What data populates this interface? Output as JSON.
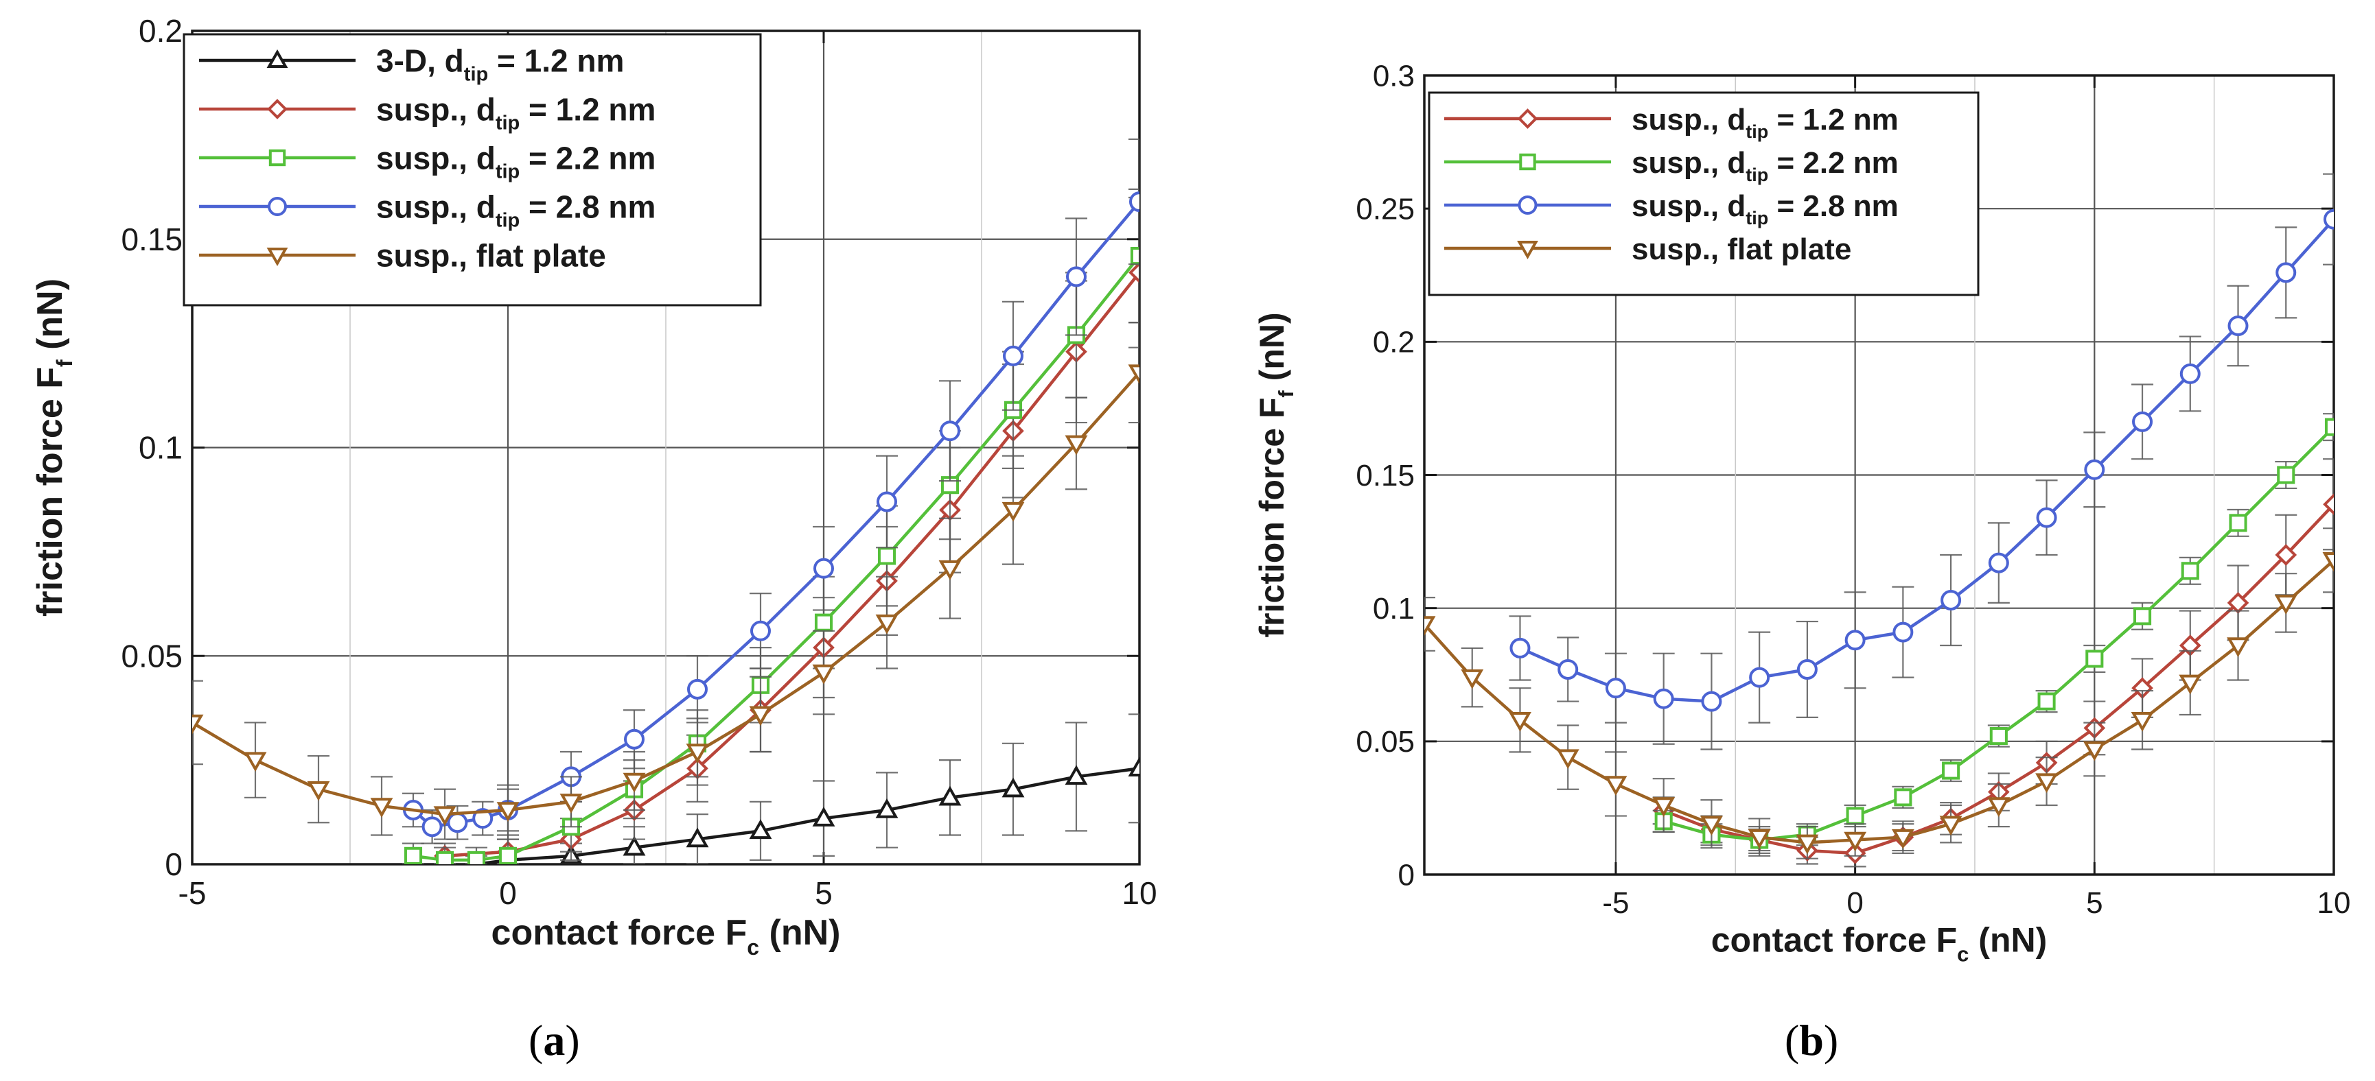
{
  "figure": {
    "panel_a_label_prefix": "(",
    "panel_a_label_letter": "a",
    "panel_a_label_suffix": ")",
    "panel_b_label_prefix": "(",
    "panel_b_label_letter": "b",
    "panel_b_label_suffix": ")"
  },
  "colors": {
    "black": "#1a1a1a",
    "red": "#b8453a",
    "green": "#54c03a",
    "blue": "#4b63d3",
    "brown": "#9c6223",
    "grid_dark": "#555555",
    "grid_light": "#c9c9c9",
    "err_faint": "#c8b994"
  },
  "chart_data": [
    {
      "type": "line",
      "panel": "a",
      "xlabel_main": "contact force F",
      "xlabel_sub": "c",
      "xlabel_unit": " (nN)",
      "ylabel_main": "friction force F",
      "ylabel_sub": "f",
      "ylabel_unit": " (nN)",
      "xlim": [
        -5,
        10
      ],
      "ylim": [
        0,
        0.2
      ],
      "xticks": [
        -5,
        0,
        5,
        10
      ],
      "xtick_labels": [
        "-5",
        "0",
        "5",
        "10"
      ],
      "yticks": [
        0,
        0.05,
        0.1,
        0.15,
        0.2
      ],
      "ytick_labels": [
        "0",
        "0.05",
        "0.1",
        "0.15",
        "0.2"
      ],
      "legend_position": "top-left",
      "series": [
        {
          "name_main": "3-D, d",
          "name_sub": "tip",
          "name_rest": " = 1.2 nm",
          "color": "black",
          "marker": "triangle-up",
          "x": [
            -0.5,
            0,
            1,
            2,
            3,
            4,
            5,
            6,
            7,
            8,
            9,
            10
          ],
          "y": [
            0.0,
            0.001,
            0.002,
            0.004,
            0.006,
            0.008,
            0.011,
            0.013,
            0.016,
            0.018,
            0.021,
            0.023
          ],
          "err": [
            0.002,
            0.002,
            0.003,
            0.005,
            0.006,
            0.007,
            0.009,
            0.009,
            0.009,
            0.011,
            0.013,
            0.013
          ]
        },
        {
          "name_main": "susp., d",
          "name_sub": "tip",
          "name_rest": " = 1.2 nm",
          "color": "red",
          "marker": "diamond",
          "x": [
            -1,
            0,
            1,
            2,
            3,
            4,
            5,
            6,
            7,
            8,
            9,
            10
          ],
          "y": [
            0.002,
            0.003,
            0.006,
            0.013,
            0.023,
            0.037,
            0.052,
            0.068,
            0.085,
            0.104,
            0.123,
            0.142
          ],
          "err": [
            0.003,
            0.003,
            0.005,
            0.007,
            0.008,
            0.01,
            0.012,
            0.013,
            0.015,
            0.016,
            0.017,
            0.018
          ]
        },
        {
          "name_main": "susp., d",
          "name_sub": "tip",
          "name_rest": " = 2.2 nm",
          "color": "green",
          "marker": "square",
          "x": [
            -1.5,
            -1.0,
            -0.5,
            0,
            1,
            2,
            3,
            4,
            5,
            6,
            7,
            8,
            9,
            10
          ],
          "y": [
            0.002,
            0.001,
            0.001,
            0.002,
            0.009,
            0.018,
            0.029,
            0.043,
            0.058,
            0.074,
            0.091,
            0.109,
            0.127,
            0.146
          ],
          "err": [
            0.003,
            0.003,
            0.003,
            0.004,
            0.006,
            0.007,
            0.008,
            0.009,
            0.011,
            0.012,
            0.013,
            0.014,
            0.015,
            0.016
          ]
        },
        {
          "name_main": "susp., d",
          "name_sub": "tip",
          "name_rest": " = 2.8 nm",
          "color": "blue",
          "marker": "circle",
          "x": [
            -1.5,
            -1.2,
            -0.8,
            -0.4,
            0,
            1,
            2,
            3,
            4,
            5,
            6,
            7,
            8,
            9,
            10
          ],
          "y": [
            0.013,
            0.009,
            0.01,
            0.011,
            0.013,
            0.021,
            0.03,
            0.042,
            0.056,
            0.071,
            0.087,
            0.104,
            0.122,
            0.141,
            0.159
          ],
          "err": [
            0.004,
            0.004,
            0.004,
            0.004,
            0.005,
            0.006,
            0.007,
            0.008,
            0.009,
            0.01,
            0.011,
            0.012,
            0.013,
            0.014,
            0.015
          ]
        },
        {
          "name_main": "susp., flat plate",
          "name_sub": "",
          "name_rest": "",
          "color": "brown",
          "marker": "triangle-down",
          "x": [
            -5,
            -4,
            -3,
            -2,
            -1,
            0,
            1,
            2,
            3,
            4,
            5,
            6,
            7,
            8,
            9,
            10
          ],
          "y": [
            0.034,
            0.025,
            0.018,
            0.014,
            0.012,
            0.013,
            0.015,
            0.02,
            0.027,
            0.036,
            0.046,
            0.058,
            0.071,
            0.085,
            0.101,
            0.118
          ],
          "err": [
            0.01,
            0.009,
            0.008,
            0.007,
            0.006,
            0.006,
            0.006,
            0.007,
            0.008,
            0.009,
            0.01,
            0.011,
            0.012,
            0.013,
            0.011,
            0.012
          ]
        }
      ]
    },
    {
      "type": "line",
      "panel": "b",
      "xlabel_main": "contact force F",
      "xlabel_sub": "c",
      "xlabel_unit": " (nN)",
      "ylabel_main": "friction force F",
      "ylabel_sub": "f",
      "ylabel_unit": " (nN)",
      "xlim": [
        -9,
        10
      ],
      "ylim": [
        0,
        0.3
      ],
      "xticks": [
        -5,
        0,
        5,
        10
      ],
      "xtick_labels": [
        "-5",
        "0",
        "5",
        "10"
      ],
      "yticks": [
        0,
        0.05,
        0.1,
        0.15,
        0.2,
        0.25,
        0.3
      ],
      "ytick_labels": [
        "0",
        "0.05",
        "0.1",
        "0.15",
        "0.2",
        "0.25",
        "0.3"
      ],
      "legend_position": "top-left",
      "series": [
        {
          "name_main": "susp., d",
          "name_sub": "tip",
          "name_rest": " = 1.2 nm",
          "color": "red",
          "marker": "diamond",
          "x": [
            -4,
            -3,
            -2,
            -1,
            0,
            1,
            2,
            3,
            4,
            5,
            6,
            7,
            8,
            9,
            10
          ],
          "y": [
            0.024,
            0.017,
            0.013,
            0.009,
            0.008,
            0.014,
            0.021,
            0.031,
            0.042,
            0.055,
            0.07,
            0.086,
            0.102,
            0.12,
            0.139
          ],
          "err": [
            0.005,
            0.005,
            0.005,
            0.005,
            0.005,
            0.005,
            0.006,
            0.007,
            0.008,
            0.01,
            0.011,
            0.013,
            0.014,
            0.015,
            0.017
          ]
        },
        {
          "name_main": "susp., d",
          "name_sub": "tip",
          "name_rest": " = 2.2 nm",
          "color": "green",
          "marker": "square",
          "x": [
            -4,
            -3,
            -2,
            -1,
            0,
            1,
            2,
            3,
            4,
            5,
            6,
            7,
            8,
            9,
            10
          ],
          "y": [
            0.02,
            0.015,
            0.013,
            0.015,
            0.022,
            0.029,
            0.039,
            0.052,
            0.065,
            0.081,
            0.097,
            0.114,
            0.132,
            0.15,
            0.168
          ],
          "err": [
            0.004,
            0.004,
            0.004,
            0.004,
            0.004,
            0.004,
            0.004,
            0.004,
            0.004,
            0.005,
            0.005,
            0.005,
            0.005,
            0.005,
            0.005
          ]
        },
        {
          "name_main": "susp., d",
          "name_sub": "tip",
          "name_rest": " = 2.8 nm",
          "color": "blue",
          "marker": "circle",
          "x": [
            -7,
            -6,
            -5,
            -4,
            -3,
            -2,
            -1,
            0,
            1,
            2,
            3,
            4,
            5,
            6,
            7,
            8,
            9,
            10
          ],
          "y": [
            0.085,
            0.077,
            0.07,
            0.066,
            0.065,
            0.074,
            0.077,
            0.088,
            0.091,
            0.103,
            0.117,
            0.134,
            0.152,
            0.17,
            0.188,
            0.206,
            0.226,
            0.246
          ],
          "err": [
            0.012,
            0.012,
            0.013,
            0.017,
            0.018,
            0.017,
            0.018,
            0.018,
            0.017,
            0.017,
            0.015,
            0.014,
            0.014,
            0.014,
            0.014,
            0.015,
            0.017,
            0.017
          ]
        },
        {
          "name_main": "susp., flat plate",
          "name_sub": "",
          "name_rest": "",
          "color": "brown",
          "marker": "triangle-down",
          "x": [
            -9,
            -8,
            -7,
            -6,
            -5,
            -4,
            -3,
            -2,
            -1,
            0,
            1,
            2,
            3,
            4,
            5,
            6,
            7,
            8,
            9,
            10
          ],
          "y": [
            0.094,
            0.074,
            0.058,
            0.044,
            0.034,
            0.026,
            0.019,
            0.014,
            0.012,
            0.013,
            0.014,
            0.019,
            0.026,
            0.035,
            0.047,
            0.058,
            0.072,
            0.086,
            0.102,
            0.118
          ],
          "err": [
            0.01,
            0.011,
            0.012,
            0.012,
            0.012,
            0.01,
            0.009,
            0.007,
            0.006,
            0.006,
            0.006,
            0.007,
            0.008,
            0.009,
            0.01,
            0.011,
            0.012,
            0.013,
            0.011,
            0.012
          ]
        }
      ]
    }
  ]
}
